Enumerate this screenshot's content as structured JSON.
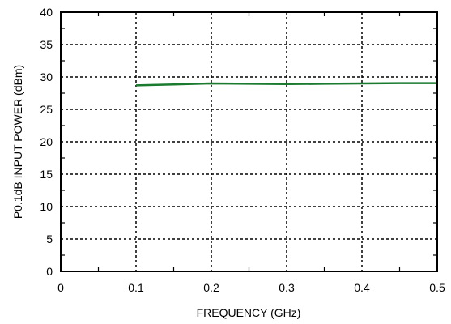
{
  "chart_data": {
    "type": "line",
    "title": "",
    "xlabel": "FREQUENCY (GHz)",
    "ylabel": "P0.1dB INPUT POWER (dBm)",
    "xlim": [
      0,
      0.5
    ],
    "ylim": [
      0,
      40
    ],
    "xticks": [
      0,
      0.1,
      0.2,
      0.3,
      0.4,
      0.5
    ],
    "xtick_labels": [
      "0",
      "0.1",
      "0.2",
      "0.3",
      "0.4",
      "0.5"
    ],
    "yticks": [
      0,
      5,
      10,
      15,
      20,
      25,
      30,
      35,
      40
    ],
    "ytick_labels": [
      "0",
      "5",
      "10",
      "15",
      "20",
      "25",
      "30",
      "35",
      "40"
    ],
    "grid": true,
    "grid_style": "dotted",
    "series": [
      {
        "color": "#1a7a2e",
        "x": [
          0.1,
          0.15,
          0.2,
          0.25,
          0.3,
          0.35,
          0.4,
          0.45,
          0.5
        ],
        "y": [
          28.7,
          28.85,
          29.0,
          28.95,
          28.9,
          28.95,
          29.0,
          29.05,
          29.05
        ]
      }
    ]
  }
}
